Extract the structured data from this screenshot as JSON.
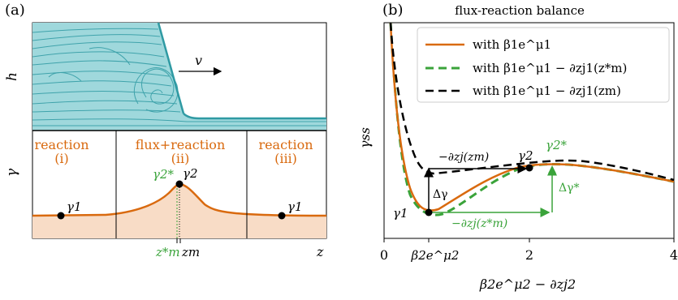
{
  "colors": {
    "orange": "#d96a0f",
    "green": "#3aa33a",
    "teal": "#2f9aa3",
    "teal_fill": "#9fd8dc",
    "peach": "#f8dcc6",
    "black": "#000000"
  },
  "panel_a": {
    "label": "(a)",
    "ylabel_top": "h",
    "ylabel_bottom": "γ",
    "xlabel": "z",
    "flow_label": "v",
    "regions": [
      {
        "title": "reaction",
        "roman": "(i)"
      },
      {
        "title": "flux+reaction",
        "roman": "(ii)"
      },
      {
        "title": "reaction",
        "roman": "(iii)"
      }
    ],
    "points": {
      "gamma1_left": "γ1",
      "gamma2": "γ2",
      "gamma2_star": "γ2*",
      "gamma1_right": "γ1"
    },
    "z_labels": {
      "zm": "zm",
      "zm_star": "z*m"
    }
  },
  "panel_b": {
    "label": "(b)",
    "title": "flux-reaction balance",
    "ylabel": "γss",
    "xlabel": "β2e^μ2 − ∂zj2",
    "x_ticks": [
      "0",
      "2",
      "4"
    ],
    "x_tick_special": "β2e^μ2",
    "legend": [
      "with β1e^μ1",
      "with β1e^μ1 − ∂zj1(z*m)",
      "with β1e^μ1 − ∂zj1(zm)"
    ],
    "annotations": {
      "gamma1": "γ1",
      "gamma2": "γ2",
      "gamma2_star": "γ2*",
      "delta_gamma": "Δγ",
      "delta_gamma_star": "Δγ*",
      "flux_black": "−∂zj(zm)",
      "flux_green": "−∂zj(z*m)"
    }
  }
}
